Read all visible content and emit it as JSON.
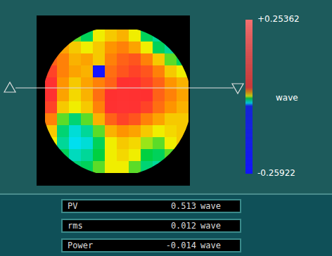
{
  "chart_data": {
    "type": "heatmap",
    "cells": [
      [
        null,
        null,
        -0.005,
        -0.01,
        0.0,
        0.005,
        0.008,
        0.0,
        -0.01,
        -0.015,
        null,
        null
      ],
      [
        null,
        0.01,
        0.005,
        0.0,
        0.005,
        0.012,
        0.015,
        0.01,
        0.0,
        -0.01,
        -0.015,
        null
      ],
      [
        0.02,
        0.015,
        0.008,
        0.01,
        0.005,
        0.015,
        0.02,
        0.022,
        0.015,
        0.005,
        -0.005,
        -0.01
      ],
      [
        0.025,
        0.015,
        0.01,
        0.008,
        -0.15,
        0.018,
        0.022,
        0.025,
        0.022,
        0.015,
        0.005,
        0.0
      ],
      [
        0.03,
        0.012,
        0.005,
        0.01,
        0.015,
        0.02,
        0.028,
        0.03,
        0.025,
        0.02,
        0.012,
        0.008
      ],
      [
        0.03,
        0.01,
        0.003,
        0.008,
        0.018,
        0.028,
        0.035,
        0.033,
        0.028,
        0.02,
        0.015,
        0.01
      ],
      [
        0.025,
        0.005,
        0.0,
        0.005,
        0.015,
        0.03,
        0.038,
        0.035,
        0.025,
        0.018,
        0.012,
        0.008
      ],
      [
        0.015,
        -0.005,
        -0.012,
        -0.005,
        0.008,
        0.02,
        0.025,
        0.022,
        0.015,
        0.01,
        0.005,
        0.005
      ],
      [
        0.005,
        -0.012,
        -0.02,
        -0.015,
        -0.005,
        0.008,
        0.012,
        0.01,
        0.005,
        0.0,
        0.003,
        0.005
      ],
      [
        0.0,
        -0.015,
        -0.022,
        -0.02,
        -0.01,
        0.0,
        0.005,
        0.003,
        -0.003,
        -0.005,
        0.0,
        0.005
      ],
      [
        null,
        -0.01,
        -0.018,
        -0.015,
        -0.008,
        0.0,
        0.003,
        0.0,
        -0.008,
        -0.01,
        -0.005,
        null
      ],
      [
        null,
        null,
        -0.012,
        -0.01,
        -0.005,
        0.0,
        0.0,
        -0.005,
        -0.012,
        -0.015,
        null,
        null
      ]
    ],
    "colorbar": {
      "range": [
        -0.25922,
        0.25362
      ],
      "ticks": [
        {
          "value": 0.25362,
          "label": "+0.25362"
        },
        -0.25922
      ],
      "label": "wave"
    }
  },
  "results": [
    {
      "label": "PV",
      "value": 0.513,
      "unit": "wave"
    },
    {
      "label": "rms",
      "value": 0.012,
      "unit": "wave"
    },
    {
      "label": "Power",
      "value": -0.014,
      "unit": "wave"
    }
  ]
}
